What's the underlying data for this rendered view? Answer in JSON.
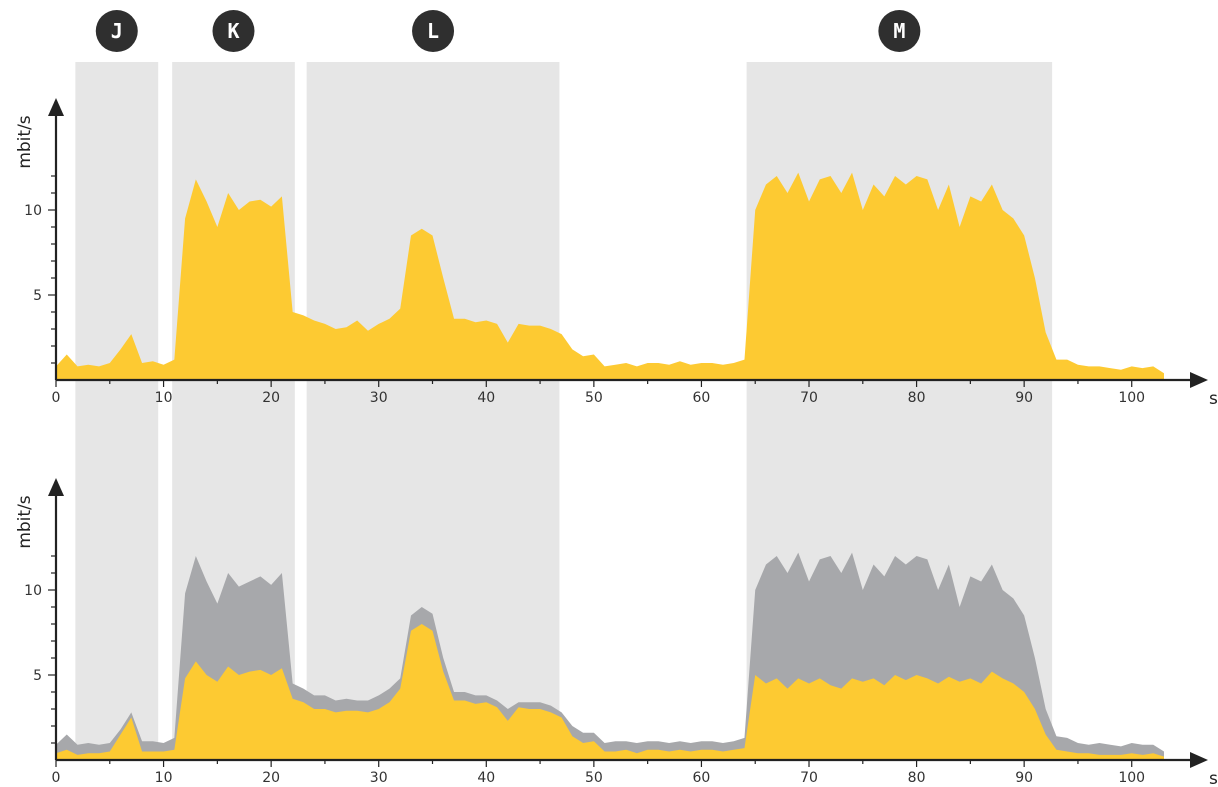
{
  "colors": {
    "period_shade": "#e6e6e6",
    "series_yellow": "#fdca32",
    "series_gray": "#a7a8ab",
    "axis": "#222222",
    "badge": "#2f2f2f"
  },
  "periods": [
    {
      "label": "J",
      "start": 1.8,
      "end": 9.5
    },
    {
      "label": "K",
      "start": 10.8,
      "end": 22.2
    },
    {
      "label": "L",
      "start": 23.3,
      "end": 46.8
    },
    {
      "label": "M",
      "start": 64.2,
      "end": 92.6
    }
  ],
  "chart_data": [
    {
      "type": "area",
      "xlabel": "s",
      "ylabel": "mbit/s",
      "xlim": [
        0,
        103
      ],
      "ylim": [
        0,
        13
      ],
      "x_ticks": [
        0,
        10,
        20,
        30,
        40,
        50,
        60,
        70,
        80,
        90,
        100
      ],
      "y_ticks": [
        5,
        10
      ],
      "x": [
        0,
        1,
        2,
        3,
        4,
        5,
        6,
        7,
        8,
        9,
        10,
        11,
        12,
        13,
        14,
        15,
        16,
        17,
        18,
        19,
        20,
        21,
        22,
        23,
        24,
        25,
        26,
        27,
        28,
        29,
        30,
        31,
        32,
        33,
        34,
        35,
        36,
        37,
        38,
        39,
        40,
        41,
        42,
        43,
        44,
        45,
        46,
        47,
        48,
        49,
        50,
        51,
        52,
        53,
        54,
        55,
        56,
        57,
        58,
        59,
        60,
        61,
        62,
        63,
        64,
        65,
        66,
        67,
        68,
        69,
        70,
        71,
        72,
        73,
        74,
        75,
        76,
        77,
        78,
        79,
        80,
        81,
        82,
        83,
        84,
        85,
        86,
        87,
        88,
        89,
        90,
        91,
        92,
        93,
        94,
        95,
        96,
        97,
        98,
        99,
        100,
        101,
        102,
        103
      ],
      "series": [
        {
          "color": "#fdca32",
          "values": [
            0.8,
            1.5,
            0.8,
            0.9,
            0.8,
            1.0,
            1.8,
            2.7,
            1.0,
            1.1,
            0.9,
            1.2,
            9.5,
            11.8,
            10.5,
            9.0,
            11.0,
            10.0,
            10.5,
            10.6,
            10.2,
            10.8,
            4.0,
            3.8,
            3.5,
            3.3,
            3.0,
            3.1,
            3.5,
            2.9,
            3.3,
            3.6,
            4.2,
            8.5,
            8.9,
            8.5,
            6.0,
            3.6,
            3.6,
            3.4,
            3.5,
            3.3,
            2.2,
            3.3,
            3.2,
            3.2,
            3.0,
            2.7,
            1.8,
            1.4,
            1.5,
            0.8,
            0.9,
            1.0,
            0.8,
            1.0,
            1.0,
            0.9,
            1.1,
            0.9,
            1.0,
            1.0,
            0.9,
            1.0,
            1.2,
            10.0,
            11.5,
            12.0,
            11.0,
            12.2,
            10.5,
            11.8,
            12.0,
            11.0,
            12.2,
            10.0,
            11.5,
            10.8,
            12.0,
            11.5,
            12.0,
            11.8,
            10.0,
            11.5,
            9.0,
            10.8,
            10.5,
            11.5,
            10.0,
            9.5,
            8.5,
            6.0,
            2.8,
            1.2,
            1.2,
            0.9,
            0.8,
            0.8,
            0.7,
            0.6,
            0.8,
            0.7,
            0.8,
            0.4
          ]
        }
      ]
    },
    {
      "type": "area",
      "xlabel": "s",
      "ylabel": "mbit/s",
      "xlim": [
        0,
        103
      ],
      "ylim": [
        0,
        13
      ],
      "x_ticks": [
        0,
        10,
        20,
        30,
        40,
        50,
        60,
        70,
        80,
        90,
        100
      ],
      "y_ticks": [
        5,
        10
      ],
      "x": [
        0,
        1,
        2,
        3,
        4,
        5,
        6,
        7,
        8,
        9,
        10,
        11,
        12,
        13,
        14,
        15,
        16,
        17,
        18,
        19,
        20,
        21,
        22,
        23,
        24,
        25,
        26,
        27,
        28,
        29,
        30,
        31,
        32,
        33,
        34,
        35,
        36,
        37,
        38,
        39,
        40,
        41,
        42,
        43,
        44,
        45,
        46,
        47,
        48,
        49,
        50,
        51,
        52,
        53,
        54,
        55,
        56,
        57,
        58,
        59,
        60,
        61,
        62,
        63,
        64,
        65,
        66,
        67,
        68,
        69,
        70,
        71,
        72,
        73,
        74,
        75,
        76,
        77,
        78,
        79,
        80,
        81,
        82,
        83,
        84,
        85,
        86,
        87,
        88,
        89,
        90,
        91,
        92,
        93,
        94,
        95,
        96,
        97,
        98,
        99,
        100,
        101,
        102,
        103
      ],
      "series": [
        {
          "color": "#a7a8ab",
          "values": [
            0.9,
            1.5,
            0.9,
            1.0,
            0.9,
            1.0,
            1.8,
            2.8,
            1.1,
            1.1,
            1.0,
            1.3,
            9.8,
            12.0,
            10.5,
            9.2,
            11.0,
            10.2,
            10.5,
            10.8,
            10.3,
            11.0,
            4.5,
            4.2,
            3.8,
            3.8,
            3.5,
            3.6,
            3.5,
            3.5,
            3.8,
            4.2,
            4.8,
            8.5,
            9.0,
            8.6,
            6.0,
            4.0,
            4.0,
            3.8,
            3.8,
            3.5,
            3.0,
            3.4,
            3.4,
            3.4,
            3.2,
            2.8,
            2.0,
            1.6,
            1.6,
            1.0,
            1.1,
            1.1,
            1.0,
            1.1,
            1.1,
            1.0,
            1.1,
            1.0,
            1.1,
            1.1,
            1.0,
            1.1,
            1.3,
            10.0,
            11.5,
            12.0,
            11.0,
            12.2,
            10.5,
            11.8,
            12.0,
            11.0,
            12.2,
            10.0,
            11.5,
            10.8,
            12.0,
            11.5,
            12.0,
            11.8,
            10.0,
            11.5,
            9.0,
            10.8,
            10.5,
            11.5,
            10.0,
            9.5,
            8.5,
            6.0,
            3.0,
            1.4,
            1.3,
            1.0,
            0.9,
            1.0,
            0.9,
            0.8,
            1.0,
            0.9,
            0.9,
            0.5
          ]
        },
        {
          "color": "#fdca32",
          "values": [
            0.4,
            0.6,
            0.3,
            0.4,
            0.4,
            0.5,
            1.5,
            2.5,
            0.5,
            0.5,
            0.5,
            0.6,
            4.8,
            5.8,
            5.0,
            4.6,
            5.5,
            5.0,
            5.2,
            5.3,
            5.0,
            5.4,
            3.6,
            3.4,
            3.0,
            3.0,
            2.8,
            2.9,
            2.9,
            2.8,
            3.0,
            3.4,
            4.2,
            7.6,
            8.0,
            7.6,
            5.2,
            3.5,
            3.5,
            3.3,
            3.4,
            3.1,
            2.3,
            3.1,
            3.0,
            3.0,
            2.8,
            2.5,
            1.4,
            1.0,
            1.1,
            0.5,
            0.5,
            0.6,
            0.4,
            0.6,
            0.6,
            0.5,
            0.6,
            0.5,
            0.6,
            0.6,
            0.5,
            0.6,
            0.7,
            5.0,
            4.5,
            4.8,
            4.2,
            4.8,
            4.5,
            4.8,
            4.4,
            4.2,
            4.8,
            4.6,
            4.8,
            4.4,
            5.0,
            4.7,
            5.0,
            4.8,
            4.5,
            4.9,
            4.6,
            4.8,
            4.5,
            5.2,
            4.8,
            4.5,
            4.0,
            3.0,
            1.5,
            0.6,
            0.5,
            0.4,
            0.4,
            0.3,
            0.3,
            0.3,
            0.4,
            0.3,
            0.4,
            0.2
          ]
        }
      ]
    }
  ]
}
